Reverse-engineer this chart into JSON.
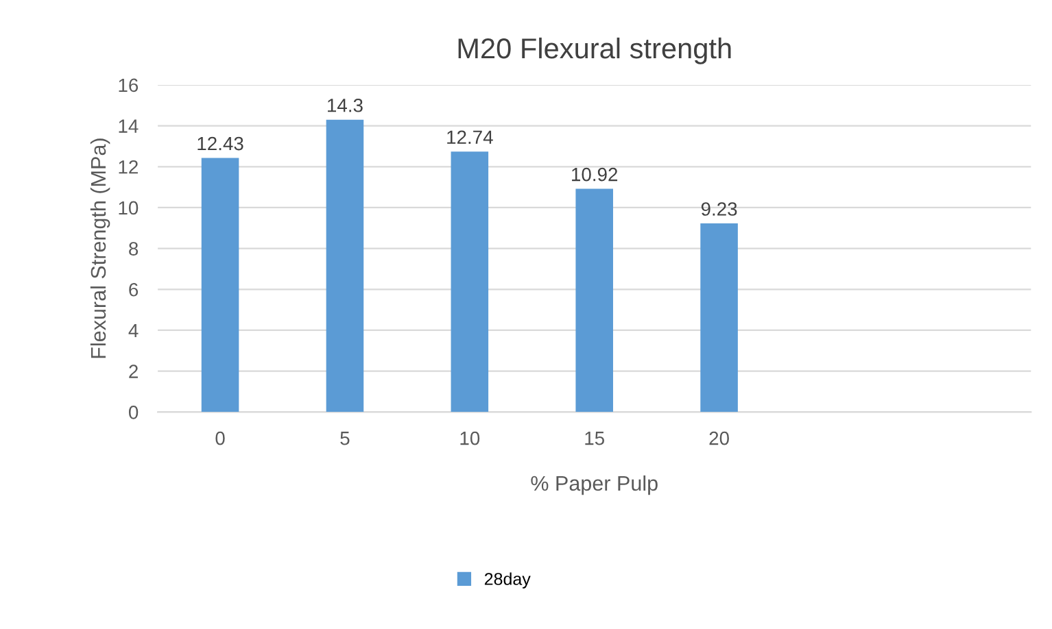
{
  "chart_data": {
    "type": "bar",
    "title": "M20 Flexural strength",
    "xlabel": "% Paper Pulp",
    "ylabel": "Flexural Strength (MPa)",
    "categories": [
      "0",
      "5",
      "10",
      "15",
      "20",
      null,
      null
    ],
    "series": [
      {
        "name": "28day",
        "color": "#5b9bd5",
        "values": [
          12.43,
          14.3,
          12.74,
          10.92,
          9.23,
          null,
          null
        ]
      }
    ],
    "ylim": [
      0,
      16
    ],
    "yticks": [
      0,
      2,
      4,
      6,
      8,
      10,
      12,
      14,
      16
    ],
    "grid": "y",
    "legend": "bottom",
    "data_labels": true
  }
}
